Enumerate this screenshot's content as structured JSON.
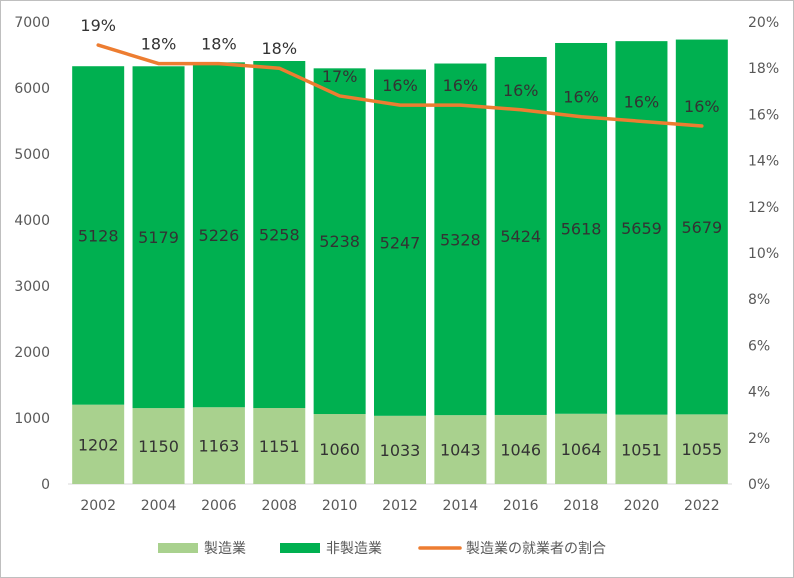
{
  "chart_data": {
    "type": "bar",
    "categories": [
      "2002",
      "2004",
      "2006",
      "2008",
      "2010",
      "2012",
      "2014",
      "2016",
      "2018",
      "2020",
      "2022"
    ],
    "series": [
      {
        "name": "製造業",
        "kind": "stacked-bar",
        "axis": "left",
        "color": "#a9d18e",
        "values": [
          1202,
          1150,
          1163,
          1151,
          1060,
          1033,
          1043,
          1046,
          1064,
          1051,
          1055
        ]
      },
      {
        "name": "非製造業",
        "kind": "stacked-bar",
        "axis": "left",
        "color": "#00b050",
        "values": [
          5128,
          5179,
          5226,
          5258,
          5238,
          5247,
          5328,
          5424,
          5618,
          5659,
          5679
        ]
      },
      {
        "name": "製造業の就業者の割合",
        "kind": "line",
        "axis": "right",
        "color": "#ed7d31",
        "values": [
          19.0,
          18.2,
          18.2,
          18.0,
          16.8,
          16.4,
          16.4,
          16.2,
          15.9,
          15.7,
          15.5
        ],
        "labels": [
          "19%",
          "18%",
          "18%",
          "18%",
          "17%",
          "16%",
          "16%",
          "16%",
          "16%",
          "16%",
          "16%"
        ]
      }
    ],
    "ylim": [
      0,
      7000
    ],
    "yticks": [
      "0",
      "1000",
      "2000",
      "3000",
      "4000",
      "5000",
      "6000",
      "7000"
    ],
    "y2lim": [
      0,
      20
    ],
    "y2ticks": [
      "0%",
      "2%",
      "4%",
      "6%",
      "8%",
      "10%",
      "12%",
      "14%",
      "16%",
      "18%",
      "20%"
    ],
    "legend": "bottom",
    "grid": false
  }
}
